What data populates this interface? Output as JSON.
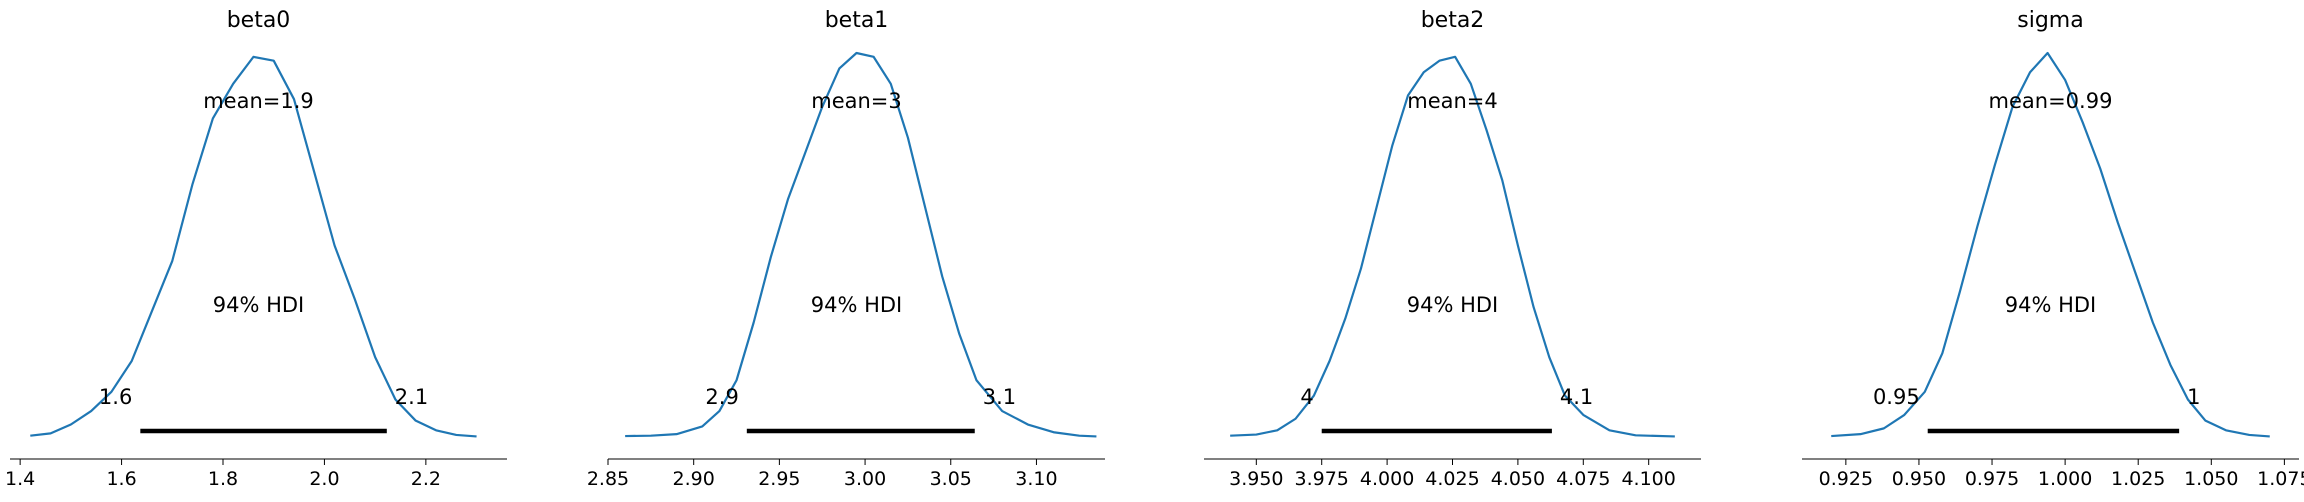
{
  "chart_data": [
    {
      "type": "area",
      "title": "beta0",
      "mean_label": "mean=1.9",
      "hdi_label": "94% HDI",
      "hdi": [
        1.6,
        2.1
      ],
      "hdi_labels": [
        "1.6",
        "2.1"
      ],
      "xlim": [
        1.38,
        2.36
      ],
      "xticks": [
        1.4,
        1.6,
        1.8,
        2.0,
        2.2
      ],
      "xtick_labels": [
        "1.4",
        "1.6",
        "1.8",
        "2.0",
        "2.2"
      ],
      "hdi_line": [
        1.637,
        2.123
      ],
      "density": {
        "x": [
          1.42,
          1.46,
          1.5,
          1.54,
          1.58,
          1.62,
          1.66,
          1.7,
          1.74,
          1.78,
          1.82,
          1.86,
          1.9,
          1.94,
          1.98,
          2.02,
          2.06,
          2.1,
          2.14,
          2.18,
          2.22,
          2.26,
          2.3
        ],
        "y": [
          0.006,
          0.012,
          0.035,
          0.07,
          0.12,
          0.2,
          0.33,
          0.46,
          0.66,
          0.83,
          0.92,
          0.99,
          0.98,
          0.88,
          0.69,
          0.5,
          0.36,
          0.21,
          0.1,
          0.045,
          0.02,
          0.008,
          0.004
        ]
      }
    },
    {
      "type": "area",
      "title": "beta1",
      "mean_label": "mean=3",
      "hdi_label": "94% HDI",
      "hdi": [
        2.9,
        3.1
      ],
      "hdi_labels": [
        "2.9",
        "3.1"
      ],
      "xlim": [
        2.85,
        3.14
      ],
      "xticks": [
        2.85,
        2.9,
        2.95,
        3.0,
        3.05,
        3.1
      ],
      "xtick_labels": [
        "2.85",
        "2.90",
        "2.95",
        "3.00",
        "3.05",
        "3.10"
      ],
      "hdi_line": [
        2.931,
        3.064
      ],
      "density": {
        "x": [
          2.86,
          2.875,
          2.89,
          2.905,
          2.915,
          2.925,
          2.935,
          2.945,
          2.955,
          2.965,
          2.975,
          2.985,
          2.995,
          3.005,
          3.015,
          3.025,
          3.035,
          3.045,
          3.055,
          3.065,
          3.08,
          3.095,
          3.11,
          3.125,
          3.135
        ],
        "y": [
          0.005,
          0.006,
          0.01,
          0.03,
          0.07,
          0.15,
          0.3,
          0.47,
          0.62,
          0.74,
          0.86,
          0.96,
          1.0,
          0.99,
          0.92,
          0.78,
          0.6,
          0.42,
          0.27,
          0.15,
          0.07,
          0.035,
          0.015,
          0.006,
          0.004
        ]
      }
    },
    {
      "type": "area",
      "title": "beta2",
      "mean_label": "mean=4",
      "hdi_label": "94% HDI",
      "hdi": [
        4.0,
        4.1
      ],
      "hdi_labels": [
        "4",
        "4.1"
      ],
      "xlim": [
        3.93,
        4.12
      ],
      "xticks": [
        3.95,
        3.975,
        4.0,
        4.025,
        4.05,
        4.075,
        4.1
      ],
      "xtick_labels": [
        "3.950",
        "3.975",
        "4.000",
        "4.025",
        "4.050",
        "4.075",
        "4.100"
      ],
      "hdi_line": [
        3.975,
        4.063
      ],
      "density": {
        "x": [
          3.94,
          3.95,
          3.958,
          3.965,
          3.972,
          3.978,
          3.984,
          3.99,
          3.996,
          4.002,
          4.008,
          4.014,
          4.02,
          4.026,
          4.032,
          4.038,
          4.044,
          4.05,
          4.056,
          4.062,
          4.068,
          4.075,
          4.085,
          4.095,
          4.11
        ],
        "y": [
          0.006,
          0.009,
          0.02,
          0.05,
          0.11,
          0.2,
          0.31,
          0.44,
          0.6,
          0.76,
          0.89,
          0.95,
          0.98,
          0.99,
          0.92,
          0.8,
          0.67,
          0.5,
          0.34,
          0.21,
          0.11,
          0.06,
          0.02,
          0.007,
          0.004
        ]
      }
    },
    {
      "type": "area",
      "title": "sigma",
      "mean_label": "mean=0.99",
      "hdi_label": "94% HDI",
      "hdi": [
        0.95,
        1.0
      ],
      "hdi_labels": [
        "0.95",
        "1"
      ],
      "xlim": [
        0.91,
        1.08
      ],
      "xticks": [
        0.925,
        0.95,
        0.975,
        1.0,
        1.025,
        1.05,
        1.075
      ],
      "xtick_labels": [
        "0.925",
        "0.950",
        "0.975",
        "1.000",
        "1.025",
        "1.050",
        "1.075"
      ],
      "hdi_line": [
        0.953,
        1.039
      ],
      "density": {
        "x": [
          0.92,
          0.93,
          0.938,
          0.945,
          0.952,
          0.958,
          0.964,
          0.97,
          0.976,
          0.982,
          0.988,
          0.994,
          1.0,
          1.006,
          1.012,
          1.018,
          1.024,
          1.03,
          1.036,
          1.042,
          1.048,
          1.055,
          1.063,
          1.07
        ],
        "y": [
          0.005,
          0.01,
          0.025,
          0.06,
          0.12,
          0.22,
          0.38,
          0.55,
          0.71,
          0.86,
          0.95,
          1.0,
          0.93,
          0.82,
          0.7,
          0.56,
          0.43,
          0.3,
          0.19,
          0.1,
          0.045,
          0.02,
          0.008,
          0.004
        ]
      }
    }
  ]
}
